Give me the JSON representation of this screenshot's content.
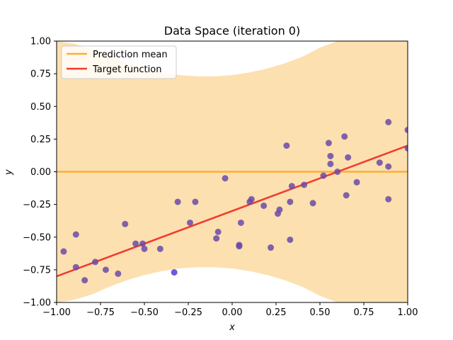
{
  "chart_data": {
    "type": "scatter",
    "title": "Data Space (iteration 0)",
    "xlabel": "x",
    "ylabel": "y",
    "xlim": [
      -1.0,
      1.0
    ],
    "ylim": [
      -1.0,
      1.0
    ],
    "x_ticks": [
      "−1.00",
      "−0.75",
      "−0.50",
      "−0.25",
      "0.00",
      "0.25",
      "0.50",
      "0.75",
      "1.00"
    ],
    "y_ticks": [
      "−1.00",
      "−0.75",
      "−0.50",
      "−0.25",
      "0.00",
      "0.25",
      "0.50",
      "0.75",
      "1.00"
    ],
    "x_tick_values": [
      -1.0,
      -0.75,
      -0.5,
      -0.25,
      0.0,
      0.25,
      0.5,
      0.75,
      1.0
    ],
    "y_tick_values": [
      -1.0,
      -0.75,
      -0.5,
      -0.25,
      0.0,
      0.25,
      0.5,
      0.75,
      1.0
    ],
    "grid": false,
    "legend_position": "top-left",
    "legend": [
      {
        "label": "Prediction mean",
        "color": "#fbb034"
      },
      {
        "label": "Target function",
        "color": "#f23a2f"
      }
    ],
    "prediction_mean": {
      "value": 0.0,
      "color": "#fbb034"
    },
    "target_function": {
      "x": [
        -1.0,
        1.0
      ],
      "y": [
        -0.8,
        0.2
      ],
      "color": "#f23a2f"
    },
    "uncertainty_band": {
      "color": "#fde0b0",
      "x": [
        -1.0,
        -0.9,
        -0.8,
        -0.7,
        -0.6,
        -0.5,
        -0.4,
        -0.3,
        -0.2,
        -0.1,
        0.0,
        0.1,
        0.2,
        0.3,
        0.4,
        0.5,
        0.6,
        0.7,
        0.8,
        0.9,
        1.0
      ],
      "upper": [
        1.0,
        0.98,
        0.94,
        0.88,
        0.83,
        0.79,
        0.76,
        0.74,
        0.73,
        0.73,
        0.74,
        0.76,
        0.79,
        0.83,
        0.88,
        0.95,
        1.0,
        1.05,
        1.1,
        1.15,
        1.2
      ],
      "lower": [
        -1.0,
        -0.98,
        -0.94,
        -0.88,
        -0.83,
        -0.79,
        -0.76,
        -0.74,
        -0.73,
        -0.73,
        -0.74,
        -0.76,
        -0.79,
        -0.83,
        -0.88,
        -0.95,
        -1.0,
        -1.05,
        -1.1,
        -1.15,
        -1.2
      ]
    },
    "points_color": "#6a4aa8",
    "highlight_color": "#4a3fd8",
    "points": [
      {
        "x": -0.96,
        "y": -0.61
      },
      {
        "x": -0.89,
        "y": -0.48
      },
      {
        "x": -0.89,
        "y": -0.73
      },
      {
        "x": -0.84,
        "y": -0.83
      },
      {
        "x": -0.78,
        "y": -0.69
      },
      {
        "x": -0.72,
        "y": -0.75
      },
      {
        "x": -0.65,
        "y": -0.78
      },
      {
        "x": -0.61,
        "y": -0.4
      },
      {
        "x": -0.55,
        "y": -0.55
      },
      {
        "x": -0.51,
        "y": -0.55
      },
      {
        "x": -0.5,
        "y": -0.59
      },
      {
        "x": -0.41,
        "y": -0.59
      },
      {
        "x": -0.33,
        "y": -0.77,
        "highlight": true
      },
      {
        "x": -0.31,
        "y": -0.23
      },
      {
        "x": -0.24,
        "y": -0.39
      },
      {
        "x": -0.21,
        "y": -0.23
      },
      {
        "x": -0.09,
        "y": -0.51
      },
      {
        "x": -0.08,
        "y": -0.46
      },
      {
        "x": -0.04,
        "y": -0.05
      },
      {
        "x": 0.04,
        "y": -0.56
      },
      {
        "x": 0.04,
        "y": -0.57
      },
      {
        "x": 0.05,
        "y": -0.39
      },
      {
        "x": 0.1,
        "y": -0.23
      },
      {
        "x": 0.11,
        "y": -0.21
      },
      {
        "x": 0.18,
        "y": -0.26
      },
      {
        "x": 0.22,
        "y": -0.58
      },
      {
        "x": 0.26,
        "y": -0.32
      },
      {
        "x": 0.27,
        "y": -0.29
      },
      {
        "x": 0.31,
        "y": 0.2
      },
      {
        "x": 0.33,
        "y": -0.52
      },
      {
        "x": 0.33,
        "y": -0.23
      },
      {
        "x": 0.34,
        "y": -0.11
      },
      {
        "x": 0.41,
        "y": -0.1
      },
      {
        "x": 0.46,
        "y": -0.24
      },
      {
        "x": 0.52,
        "y": -0.03
      },
      {
        "x": 0.55,
        "y": 0.22
      },
      {
        "x": 0.56,
        "y": 0.12
      },
      {
        "x": 0.56,
        "y": 0.06
      },
      {
        "x": 0.6,
        "y": 0.0
      },
      {
        "x": 0.64,
        "y": 0.27
      },
      {
        "x": 0.65,
        "y": -0.18
      },
      {
        "x": 0.66,
        "y": 0.11
      },
      {
        "x": 0.71,
        "y": -0.08
      },
      {
        "x": 0.84,
        "y": 0.07
      },
      {
        "x": 0.89,
        "y": 0.38
      },
      {
        "x": 0.89,
        "y": 0.04
      },
      {
        "x": 0.89,
        "y": -0.21
      },
      {
        "x": 1.0,
        "y": 0.32
      },
      {
        "x": 1.0,
        "y": 0.18
      }
    ]
  }
}
